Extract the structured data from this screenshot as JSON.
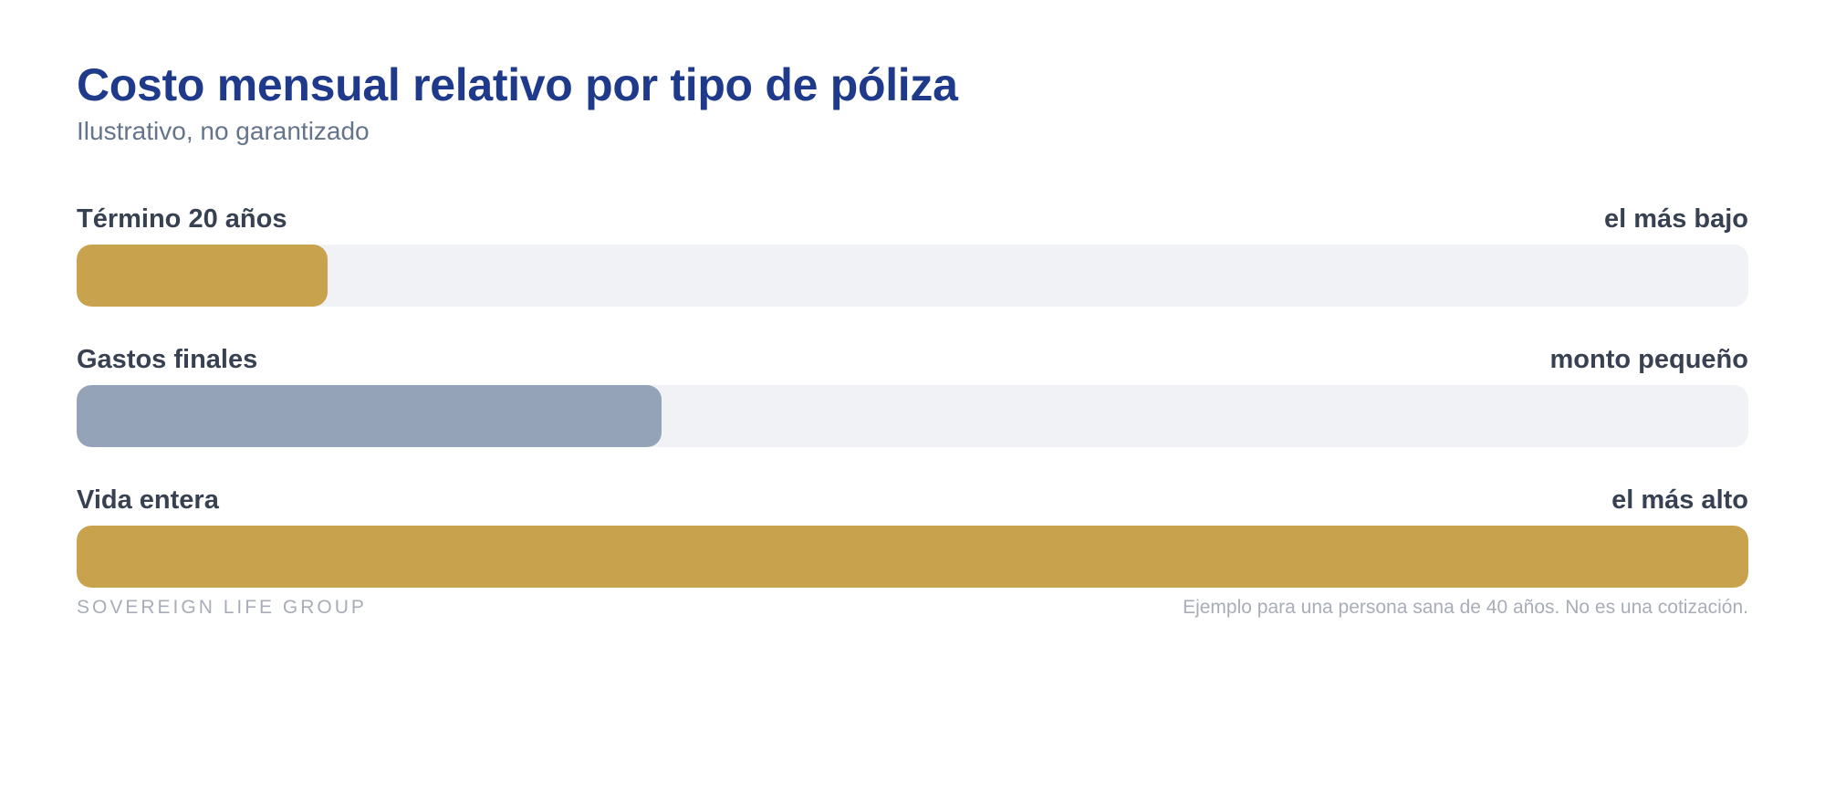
{
  "chart_data": {
    "type": "bar",
    "orientation": "horizontal",
    "title": "Costo mensual relativo por tipo de póliza",
    "subtitle": "Ilustrativo, no garantizado",
    "categories": [
      "Término 20 años",
      "Gastos finales",
      "Vida entera"
    ],
    "notes": [
      "el más bajo",
      "monto pequeño",
      "el más alto"
    ],
    "values": [
      15,
      35,
      100
    ],
    "value_unit": "percent of maximum",
    "colors": [
      "#c8a24c",
      "#94a3b8",
      "#c8a24c"
    ],
    "track_color": "#f1f2f5",
    "xlim": [
      0,
      100
    ],
    "grid": false,
    "legend": "none"
  },
  "footer": {
    "brand": "SOVEREIGN LIFE GROUP",
    "note": "Ejemplo para una persona sana de 40 años. No es una cotización."
  },
  "colors": {
    "title": "#1f3a8a",
    "subtitle": "#64748b",
    "label": "#374151",
    "footer": "#a8adb7"
  }
}
